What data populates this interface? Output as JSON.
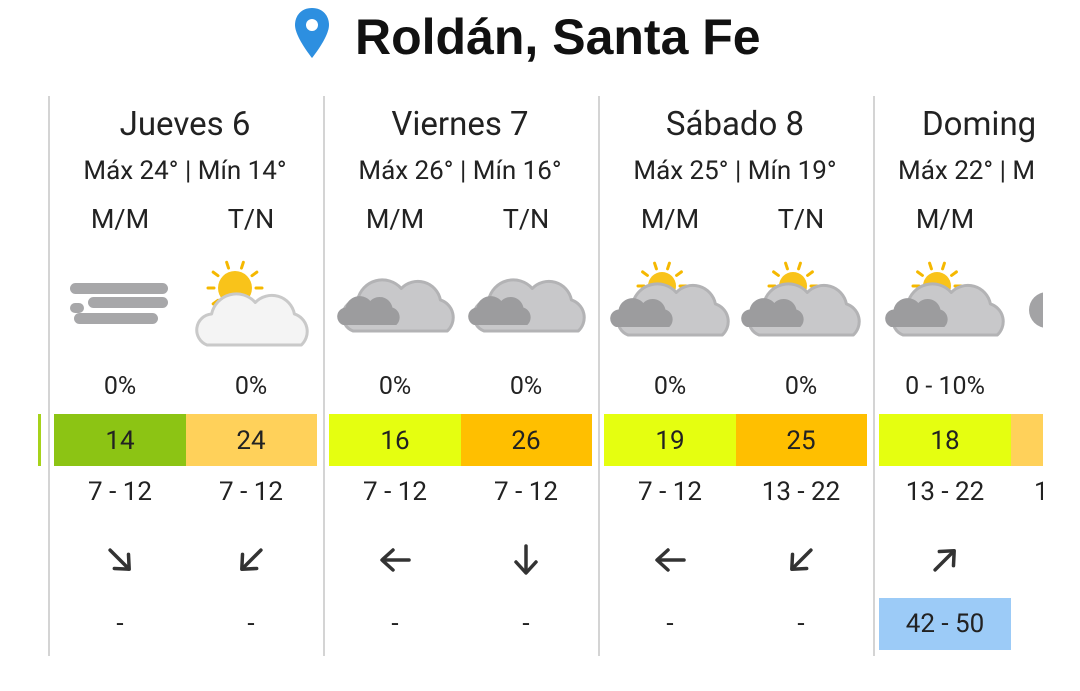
{
  "header": {
    "title": "Roldán, Santa Fe"
  },
  "days": [
    {
      "name": "Jueves 6",
      "maxmin": "Máx 24° | Mín 14°",
      "periods": [
        {
          "label": "M/M",
          "precip": "0%",
          "temp": 14,
          "temp_color": "#8cc414",
          "wind": "7 - 12",
          "gust": "-"
        },
        {
          "label": "T/N",
          "precip": "0%",
          "temp": 24,
          "temp_color": "#ffd15a",
          "wind": "7 - 12",
          "gust": "-"
        }
      ]
    },
    {
      "name": "Viernes 7",
      "maxmin": "Máx 26° | Mín 16°",
      "periods": [
        {
          "label": "M/M",
          "precip": "0%",
          "temp": 16,
          "temp_color": "#e5ff10",
          "wind": "7 - 12",
          "gust": "-"
        },
        {
          "label": "T/N",
          "precip": "0%",
          "temp": 26,
          "temp_color": "#ffbf00",
          "wind": "7 - 12",
          "gust": "-"
        }
      ]
    },
    {
      "name": "Sábado 8",
      "maxmin": "Máx 25° | Mín 19°",
      "periods": [
        {
          "label": "M/M",
          "precip": "0%",
          "temp": 19,
          "temp_color": "#e5ff10",
          "wind": "7 - 12",
          "gust": "-"
        },
        {
          "label": "T/N",
          "precip": "0%",
          "temp": 25,
          "temp_color": "#ffbf00",
          "wind": "13 - 22",
          "gust": "-"
        }
      ]
    },
    {
      "name": "Doming",
      "maxmin": "Máx 22° | M",
      "periods": [
        {
          "label": "M/M",
          "precip": "0 - 10%",
          "temp": 18,
          "temp_color": "#e5ff10",
          "wind": "13 - 22",
          "gust": "42 - 50",
          "gust_color": "#9ccbf7"
        },
        {
          "label": null,
          "precip": null,
          "temp": null,
          "temp_color": "#ffd15a",
          "wind": "1",
          "gust": null
        }
      ]
    }
  ]
}
